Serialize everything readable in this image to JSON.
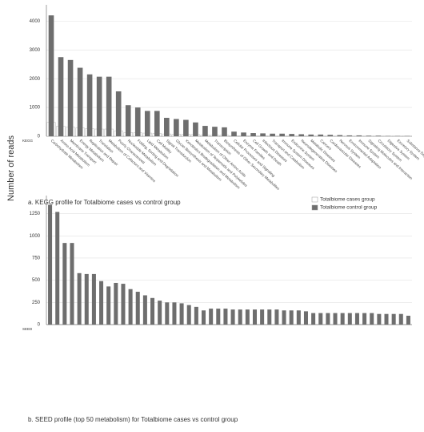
{
  "ylabel": "Number of reads",
  "chart_data": [
    {
      "type": "bar",
      "axis_label": "KEGG",
      "caption": "a. KEGG profile for Totalbiome cases vs control group",
      "legend": "lower-right",
      "grid": true,
      "ylim": [
        0,
        4400
      ],
      "yticks": [
        0,
        1000,
        2000,
        3000,
        4000
      ],
      "categories": [
        "Carbohydrate Metabolism",
        "Amino Acid Metabolism",
        "Membrane Transport",
        "Energy Metabolism",
        "Replication and Repair",
        "Translation",
        "Metabolism of Cofactors and Vitamins",
        "Poorly Characterized",
        "Nucleotide Metabolism",
        "Folding, Sorting and Degradation",
        "Lipid Metabolism",
        "Cell Motility",
        "Signal Transduction",
        "Glycan Biosynthesis and Metabolism",
        "Xenobiotics Biodegradation and Metabolism",
        "Metabolism of Terpenoids and Polyketides",
        "Metabolism of Other Amino Acids",
        "Transcription",
        "Biosynthesis of Other Secondary Metabolites",
        "Cellular Processes and Signaling",
        "Enzyme Families",
        "Cell Growth and Death",
        "Infectious Diseases",
        "Transport and Catabolism",
        "Immune System Diseases",
        "Endocrine System",
        "Neurodegenerative Diseases",
        "Metabolic Diseases",
        "Cancers",
        "Cardiovascular Diseases",
        "Nervous System",
        "Environmental Adaptation",
        "Immune System",
        "Signaling Molecules and Interaction",
        "Circulatory System",
        "Digestive System",
        "Excretory System",
        "Substance Dependence"
      ],
      "series": [
        {
          "name": "Totalbiome cases group",
          "color": "#ffffff",
          "values": [
            480,
            350,
            320,
            290,
            270,
            250,
            250,
            190,
            130,
            120,
            110,
            100,
            80,
            70,
            70,
            60,
            40,
            40,
            40,
            20,
            20,
            15,
            15,
            10,
            10,
            10,
            10,
            10,
            8,
            8,
            6,
            5,
            5,
            4,
            3,
            2,
            2,
            1
          ]
        },
        {
          "name": "Totalbiome control group",
          "color": "#6e6e6e",
          "values": [
            4200,
            2750,
            2650,
            2380,
            2150,
            2070,
            2070,
            1560,
            1080,
            1000,
            880,
            880,
            640,
            600,
            570,
            480,
            360,
            330,
            310,
            160,
            130,
            110,
            100,
            90,
            90,
            80,
            70,
            60,
            60,
            50,
            40,
            30,
            30,
            20,
            20,
            10,
            10,
            10
          ]
        }
      ]
    },
    {
      "type": "bar",
      "axis_label": "SEED",
      "caption": "b. SEED profile (top 50 metabolism) for Totalbiome cases vs control group",
      "grid": true,
      "ylim": [
        0,
        1400
      ],
      "yticks": [
        0,
        250,
        500,
        750,
        1000,
        1250
      ],
      "categories": [
        null,
        null,
        null,
        null,
        null,
        null,
        null,
        null,
        null,
        null,
        null,
        null,
        null,
        null,
        null,
        null,
        null,
        null,
        null,
        null,
        null,
        null,
        null,
        null,
        null,
        null,
        null,
        null,
        null,
        null,
        null,
        null,
        null,
        null,
        null,
        null,
        null,
        null,
        null,
        null,
        null,
        null,
        null,
        null,
        null,
        null,
        null,
        null,
        null,
        null
      ],
      "series": [
        {
          "color": "#6e6e6e",
          "values": [
            1350,
            1270,
            920,
            920,
            580,
            570,
            570,
            490,
            430,
            470,
            460,
            400,
            370,
            330,
            300,
            270,
            250,
            250,
            240,
            220,
            200,
            160,
            180,
            180,
            180,
            170,
            170,
            170,
            170,
            170,
            170,
            170,
            160,
            160,
            160,
            150,
            130,
            130,
            130,
            130,
            130,
            130,
            130,
            130,
            130,
            120,
            120,
            120,
            120,
            100
          ]
        }
      ]
    }
  ]
}
